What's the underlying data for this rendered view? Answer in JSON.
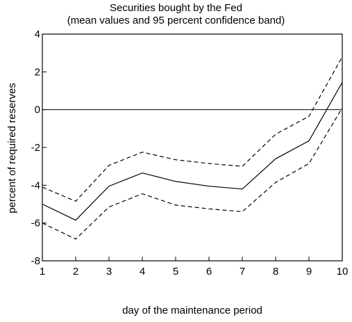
{
  "chart_data": {
    "type": "line",
    "title": "Securities bought by the Fed",
    "subtitle": "(mean values and 95 percent confidence band)",
    "xlabel": "day of the maintenance period",
    "ylabel": "percent of required reserves",
    "x": [
      1,
      2,
      3,
      4,
      5,
      6,
      7,
      8,
      9,
      10
    ],
    "xlim": [
      1,
      10
    ],
    "ylim": [
      -8,
      4
    ],
    "xticks": [
      1,
      2,
      3,
      4,
      5,
      6,
      7,
      8,
      9,
      10
    ],
    "yticks": [
      4,
      2,
      0,
      -2,
      -4,
      -6,
      -8
    ],
    "grid": false,
    "zero_line": 0,
    "series": [
      {
        "key": "mean",
        "style": "solid",
        "values": [
          -5.0,
          -5.85,
          -4.05,
          -3.35,
          -3.8,
          -4.05,
          -4.2,
          -2.6,
          -1.65,
          1.45
        ]
      },
      {
        "key": "upper",
        "style": "dashed",
        "values": [
          -4.1,
          -4.85,
          -2.95,
          -2.25,
          -2.65,
          -2.85,
          -3.0,
          -1.3,
          -0.35,
          2.8
        ]
      },
      {
        "key": "lower",
        "style": "dashed",
        "values": [
          -6.0,
          -6.85,
          -5.15,
          -4.45,
          -5.05,
          -5.25,
          -5.4,
          -3.85,
          -2.85,
          0.1
        ]
      }
    ],
    "line_color": "#000000"
  }
}
